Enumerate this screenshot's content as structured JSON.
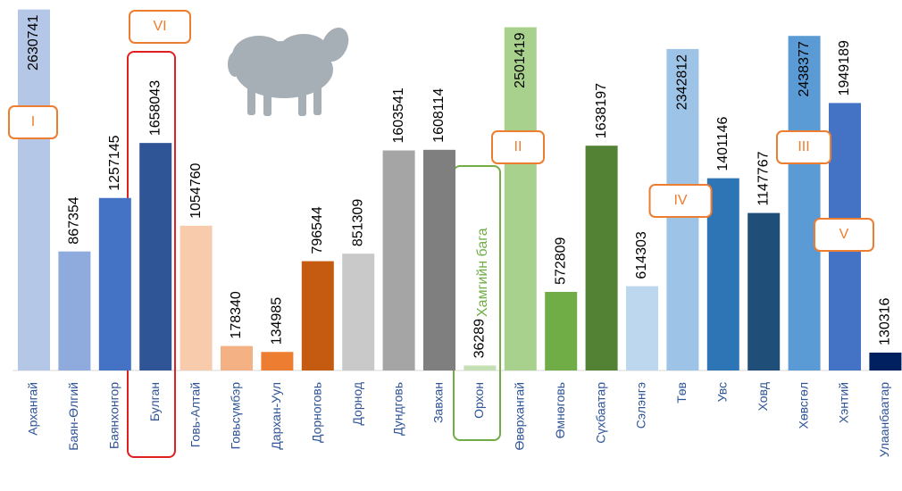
{
  "chart_data": {
    "type": "bar",
    "categories": [
      "Архангай",
      "Баян-Өлгий",
      "Баянхонгор",
      "Булган",
      "Говь-Алтай",
      "Говьсүмбэр",
      "Дархан-Уул",
      "Дорноговь",
      "Дорнод",
      "Дундговь",
      "Завхан",
      "Орхон",
      "Өвөрхангай",
      "Өмнөговь",
      "Сүхбаатар",
      "Сэлэнгэ",
      "Төв",
      "Увс",
      "Ховд",
      "Хөвсгөл",
      "Хэнтий",
      "Улаанбаатар"
    ],
    "values": [
      2630741,
      867354,
      1257145,
      1658043,
      1054760,
      178340,
      134985,
      796544,
      851309,
      1603541,
      1608114,
      36289,
      2501419,
      572809,
      1638197,
      614303,
      2342812,
      1401146,
      1147767,
      2438377,
      1949189,
      130316
    ],
    "colors": [
      "#b4c7e7",
      "#8faadc",
      "#4472c4",
      "#2f5597",
      "#f8cbad",
      "#f4b183",
      "#ed7d31",
      "#c55a11",
      "#c9c9c9",
      "#a5a5a5",
      "#7f7f7f",
      "#c5e0b4",
      "#a9d18e",
      "#70ad47",
      "#548235",
      "#bdd7ee",
      "#9dc3e6",
      "#2e75b6",
      "#1f4e79",
      "#5b9bd5",
      "#4472c4",
      "#002060"
    ],
    "ylim": [
      0,
      2700000
    ],
    "annotations": [
      "I",
      "VI",
      "II",
      "IV",
      "III",
      "V",
      "Хамгийн бага"
    ]
  }
}
